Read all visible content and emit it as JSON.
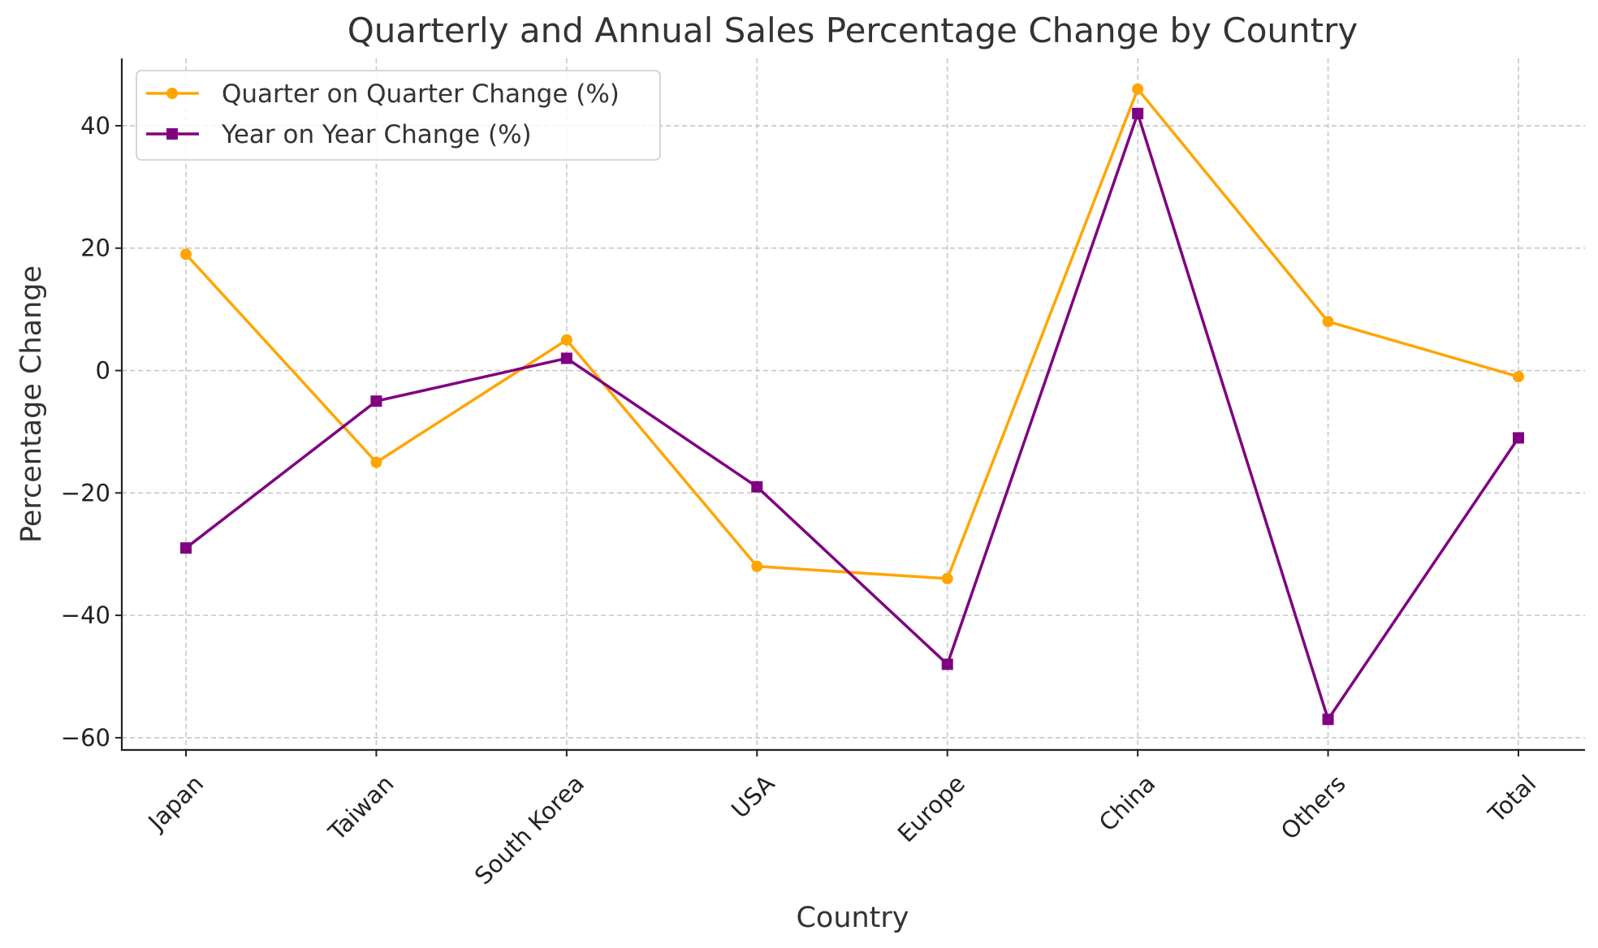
{
  "chart_data": {
    "type": "line",
    "title": "Quarterly and Annual Sales Percentage Change by Country",
    "xlabel": "Country",
    "ylabel": "Percentage Change",
    "categories": [
      "Japan",
      "Taiwan",
      "South Korea",
      "USA",
      "Europe",
      "China",
      "Others",
      "Total"
    ],
    "ylim": [
      -62,
      51
    ],
    "yticks": [
      40,
      20,
      0,
      -20,
      -40,
      -60
    ],
    "ytick_labels": [
      "40",
      "20",
      "0",
      "−20",
      "−40",
      "−60"
    ],
    "grid": true,
    "legend_position": "top-left",
    "series": [
      {
        "name": "Quarter on Quarter Change (%)",
        "color": "#FFA500",
        "marker": "circle",
        "values": [
          19,
          -15,
          5,
          -32,
          -34,
          46,
          8,
          -1
        ]
      },
      {
        "name": "Year on Year Change (%)",
        "color": "#800080",
        "marker": "square",
        "values": [
          -29,
          -5,
          2,
          -19,
          -48,
          42,
          -57,
          -11
        ]
      }
    ]
  }
}
